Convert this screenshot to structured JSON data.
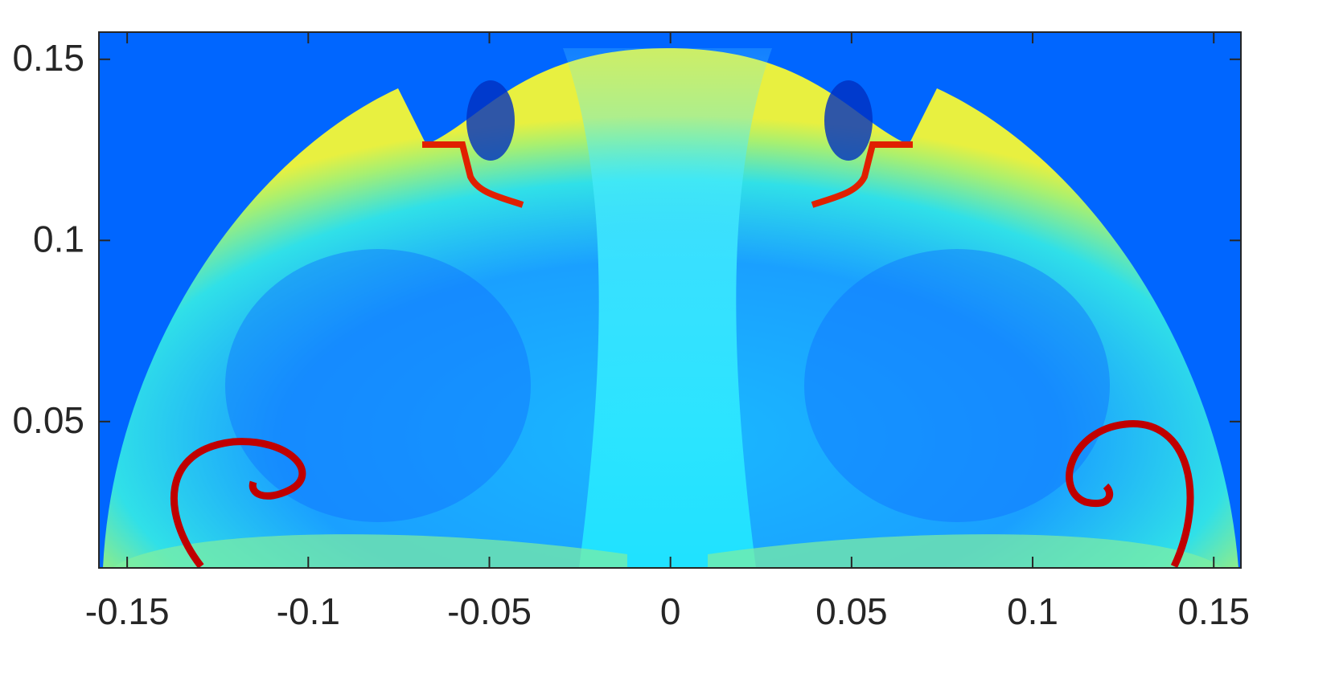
{
  "chart_data": {
    "type": "field",
    "xlim": [
      -0.1578,
      0.1575
    ],
    "xticks": [
      -0.15,
      -0.1,
      -0.05,
      0,
      0.05,
      0.1,
      0.15
    ],
    "ylim": [
      0.0096,
      0.1575
    ],
    "yticks": [
      0.05,
      0.1,
      0.15
    ]
  }
}
